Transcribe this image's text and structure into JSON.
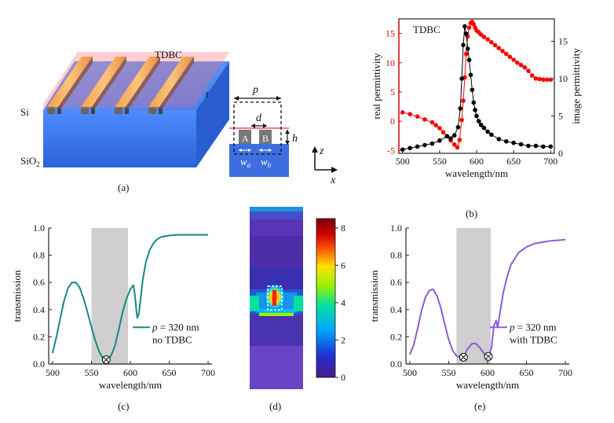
{
  "panels": {
    "a": {
      "caption": "(a)",
      "labels": {
        "tdbc": "TDBC",
        "t": "t",
        "si": "Si",
        "sio2": "SiO",
        "sio2_sub": "2"
      },
      "unit_cell": {
        "p": "p",
        "d": "d",
        "h": "h",
        "a": "A",
        "b": "B",
        "wa": "w",
        "wa_sub": "a",
        "wb": "w",
        "wb_sub": "b"
      },
      "axes": {
        "z": "z",
        "x": "x"
      }
    },
    "b": {
      "caption": "(b)"
    },
    "c": {
      "caption": "(c)"
    },
    "d": {
      "caption": "(d)"
    },
    "e": {
      "caption": "(e)"
    }
  },
  "chart_data": [
    {
      "id": "b",
      "type": "scatter",
      "title": "TDBC",
      "xlabel": "wavelength/nm",
      "ylabel": "real permittivity",
      "y2label": "image permittivity",
      "xlim": [
        495,
        705
      ],
      "ylim": [
        -5.5,
        17.5
      ],
      "y2lim": [
        0,
        18
      ],
      "xticks": [
        500,
        550,
        600,
        650,
        700
      ],
      "yticks": [
        -5,
        0,
        5,
        10,
        15
      ],
      "y2ticks": [
        0,
        5,
        10,
        15
      ],
      "colors": {
        "real": "#ff0000",
        "imag": "#000000",
        "left_axis": "#e60000"
      },
      "series": [
        {
          "axis": "left",
          "x": [
            500,
            510,
            520,
            530,
            540,
            545,
            550,
            555,
            560,
            565,
            570,
            574,
            577,
            580,
            582,
            584,
            586,
            588,
            590,
            592,
            594,
            596,
            598,
            600,
            603,
            606,
            610,
            615,
            620,
            625,
            630,
            635,
            640,
            645,
            650,
            655,
            660,
            665,
            670,
            675,
            680,
            685,
            690,
            695,
            700
          ],
          "values": [
            1.5,
            1.2,
            0.8,
            0.3,
            -0.2,
            -0.7,
            -1.2,
            -1.9,
            -2.6,
            -3.3,
            -4.0,
            -4.5,
            -3.2,
            0.2,
            3.5,
            7.5,
            11.5,
            14.5,
            16.0,
            16.8,
            17.0,
            16.6,
            16.0,
            15.5,
            15.2,
            14.8,
            14.4,
            14.0,
            13.5,
            13.0,
            12.5,
            12.0,
            11.5,
            11.0,
            10.5,
            10.0,
            9.6,
            9.2,
            8.6,
            7.8,
            7.3,
            7.2,
            7.1,
            7.1,
            7.1
          ]
        },
        {
          "axis": "right",
          "x": [
            500,
            510,
            520,
            530,
            540,
            550,
            560,
            565,
            570,
            575,
            578,
            580,
            582,
            584,
            586,
            588,
            590,
            592,
            594,
            596,
            598,
            600,
            603,
            606,
            610,
            615,
            620,
            630,
            640,
            650,
            660,
            670,
            680,
            690,
            700
          ],
          "values": [
            0.5,
            0.7,
            0.9,
            1.1,
            1.3,
            1.7,
            2.3,
            2.0,
            2.4,
            3.5,
            6.0,
            10.0,
            14.5,
            17.0,
            16.0,
            14.0,
            12.5,
            10.5,
            8.5,
            6.8,
            5.8,
            5.0,
            4.3,
            3.8,
            3.4,
            2.9,
            2.5,
            1.9,
            1.6,
            1.4,
            1.2,
            1.0,
            1.0,
            0.9,
            0.9
          ]
        }
      ]
    },
    {
      "id": "c",
      "type": "line",
      "xlabel": "wavelength/nm",
      "ylabel": "transmission",
      "xlim": [
        495,
        705
      ],
      "ylim": [
        0,
        1.0
      ],
      "xticks": [
        500,
        550,
        600,
        650,
        700
      ],
      "yticks": [
        0.0,
        0.2,
        0.4,
        0.6,
        0.8,
        1.0
      ],
      "shaded": [
        550,
        597
      ],
      "marker_x": [
        569
      ],
      "legend": {
        "p": "p",
        "rest": " = 320 nm",
        "line2": "no TDBC"
      },
      "color": "#118a84",
      "x": [
        500,
        505,
        510,
        515,
        520,
        525,
        530,
        535,
        540,
        545,
        550,
        555,
        560,
        565,
        570,
        575,
        580,
        585,
        590,
        595,
        600,
        604,
        606,
        608,
        609,
        611,
        613,
        616,
        620,
        625,
        630,
        635,
        640,
        645,
        650,
        660,
        670,
        680,
        690,
        700
      ],
      "values": [
        0.08,
        0.2,
        0.34,
        0.47,
        0.56,
        0.6,
        0.6,
        0.56,
        0.48,
        0.38,
        0.27,
        0.17,
        0.09,
        0.04,
        0.03,
        0.06,
        0.13,
        0.25,
        0.38,
        0.48,
        0.55,
        0.58,
        0.5,
        0.38,
        0.34,
        0.37,
        0.47,
        0.62,
        0.75,
        0.84,
        0.89,
        0.92,
        0.935,
        0.94,
        0.945,
        0.95,
        0.95,
        0.95,
        0.95,
        0.95
      ]
    },
    {
      "id": "d",
      "type": "heatmap",
      "colorbar_ticks": [
        0,
        2,
        4,
        6,
        8
      ],
      "colorbar_range": [
        0,
        8.5
      ],
      "colors": [
        "#4a1a8c",
        "#2030d0",
        "#00a8ff",
        "#00e0a0",
        "#ffe000",
        "#ff6000",
        "#d00000",
        "#7a0010"
      ]
    },
    {
      "id": "e",
      "type": "line",
      "xlabel": "wavelength/nm",
      "ylabel": "transmission",
      "xlim": [
        495,
        705
      ],
      "ylim": [
        0,
        1.0
      ],
      "xticks": [
        500,
        550,
        600,
        650,
        700
      ],
      "yticks": [
        0.0,
        0.2,
        0.4,
        0.6,
        0.8,
        1.0
      ],
      "shaded": [
        560,
        604
      ],
      "marker_x": [
        569,
        601
      ],
      "legend": {
        "p": "p",
        "rest": " = 320 nm",
        "line2": "with TDBC"
      },
      "color": "#8a5be0",
      "x": [
        500,
        505,
        510,
        515,
        520,
        525,
        530,
        535,
        540,
        545,
        550,
        555,
        560,
        565,
        569,
        574,
        580,
        585,
        590,
        595,
        600,
        605,
        608,
        611,
        613,
        616,
        620,
        625,
        630,
        640,
        650,
        660,
        670,
        680,
        690,
        700
      ],
      "values": [
        0.07,
        0.14,
        0.26,
        0.39,
        0.49,
        0.54,
        0.55,
        0.5,
        0.41,
        0.29,
        0.18,
        0.1,
        0.06,
        0.05,
        0.05,
        0.11,
        0.15,
        0.15,
        0.12,
        0.08,
        0.04,
        0.12,
        0.28,
        0.32,
        0.27,
        0.38,
        0.52,
        0.64,
        0.73,
        0.82,
        0.86,
        0.885,
        0.895,
        0.905,
        0.91,
        0.915
      ]
    }
  ]
}
